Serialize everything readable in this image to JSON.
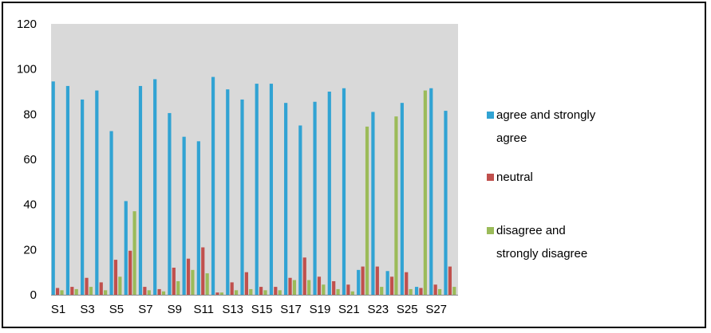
{
  "chart_data": {
    "type": "bar",
    "categories": [
      "S1",
      "S2",
      "S3",
      "S4",
      "S5",
      "S6",
      "S7",
      "S8",
      "S9",
      "S10",
      "S11",
      "S12",
      "S13",
      "S14",
      "S15",
      "S16",
      "S17",
      "S18",
      "S19",
      "S20",
      "S21",
      "S22",
      "S23",
      "S24",
      "S25",
      "S26",
      "S27",
      "S28"
    ],
    "x_tick_labels": [
      "S1",
      "S3",
      "S5",
      "S7",
      "S9",
      "S11",
      "S13",
      "S15",
      "S17",
      "S19",
      "S21",
      "S23",
      "S25",
      "S27"
    ],
    "ylim": [
      0,
      120
    ],
    "yticks": [
      0,
      20,
      40,
      60,
      80,
      100,
      120
    ],
    "grid": false,
    "plot_background": "#d9d9d9",
    "legend_position": "right",
    "series": [
      {
        "name": "agree and strongly agree",
        "legend_lines": [
          "agree and strongly",
          "agree"
        ],
        "color": "#31a3d3",
        "values": [
          94.5,
          92.5,
          86.5,
          90.5,
          72.5,
          41.5,
          92.5,
          95.5,
          80.5,
          70,
          68,
          96.5,
          91,
          86.5,
          93.5,
          93.5,
          85,
          75,
          85.5,
          90,
          91.5,
          11,
          81,
          10.5,
          85,
          3.5,
          91.5,
          81.5
        ]
      },
      {
        "name": "neutral",
        "legend_lines": [
          "neutral"
        ],
        "color": "#c0504d",
        "values": [
          3,
          3.5,
          7.5,
          5.5,
          15.5,
          19.5,
          3.5,
          2.5,
          12,
          16,
          21,
          1,
          5.5,
          10,
          3.5,
          3.5,
          7.5,
          16.5,
          8,
          6,
          4.5,
          12.5,
          12.5,
          8,
          10,
          3,
          4.5,
          12.5
        ]
      },
      {
        "name": "disagree and strongly disagree",
        "legend_lines": [
          "disagree and",
          "strongly disagree"
        ],
        "color": "#9bbb59",
        "values": [
          2,
          2.5,
          3.5,
          2,
          8,
          37,
          2,
          1.5,
          6,
          11,
          9.5,
          1,
          2,
          2.5,
          2,
          2,
          6.5,
          6.5,
          4.5,
          2.5,
          1.5,
          74.5,
          3.5,
          79,
          2.5,
          90.5,
          2.5,
          3.5
        ]
      }
    ]
  }
}
